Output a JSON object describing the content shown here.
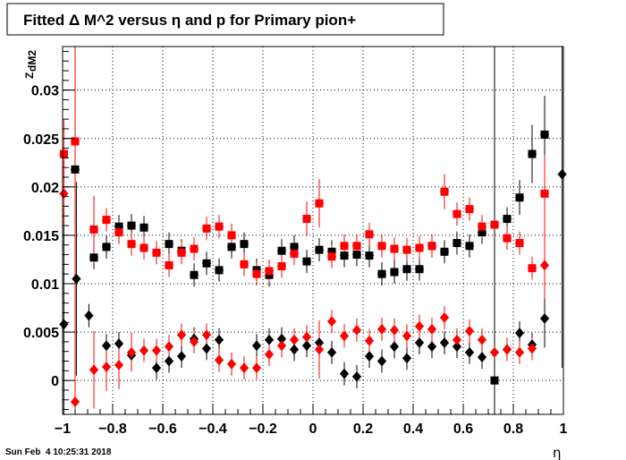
{
  "chart_data": {
    "type": "scatter",
    "title": "Fitted Δ M^2 versus η and p for Primary pion+",
    "xlabel": "η",
    "ylabel": "Z",
    "ylabel_sub": "dM2",
    "timestamp": "Sun Feb  4 10:25:31 2018",
    "xlim": [
      -1,
      1
    ],
    "ylim": [
      -0.0035,
      0.0345
    ],
    "grid": true,
    "x_ticks": [
      {
        "v": -1,
        "label": "−1"
      },
      {
        "v": -0.8,
        "label": "−0.8"
      },
      {
        "v": -0.6,
        "label": "−0.6"
      },
      {
        "v": -0.4,
        "label": "−0.4"
      },
      {
        "v": -0.2,
        "label": "−0.2"
      },
      {
        "v": 0,
        "label": "0"
      },
      {
        "v": 0.2,
        "label": "0.2"
      },
      {
        "v": 0.4,
        "label": "0.4"
      },
      {
        "v": 0.6,
        "label": "0.6"
      },
      {
        "v": 0.8,
        "label": "0.8"
      },
      {
        "v": 1,
        "label": "1"
      }
    ],
    "y_ticks": [
      {
        "v": 0,
        "label": "0"
      },
      {
        "v": 0.005,
        "label": "0.005"
      },
      {
        "v": 0.01,
        "label": "0.01"
      },
      {
        "v": 0.015,
        "label": "0.015"
      },
      {
        "v": 0.02,
        "label": "0.02"
      },
      {
        "v": 0.025,
        "label": "0.025"
      },
      {
        "v": 0.03,
        "label": "0.03"
      }
    ],
    "series": [
      {
        "marker": "square",
        "color": "#000000",
        "points": [
          [
            -0.95,
            0.0218,
            0.005
          ],
          [
            -0.875,
            0.0127,
            0.0012
          ],
          [
            -0.825,
            0.0138,
            0.0012
          ],
          [
            -0.775,
            0.0159,
            0.0012
          ],
          [
            -0.725,
            0.016,
            0.0012
          ],
          [
            -0.675,
            0.0158,
            0.0012
          ],
          [
            -0.575,
            0.0141,
            0.0012
          ],
          [
            -0.525,
            0.0134,
            0.0012
          ],
          [
            -0.475,
            0.0109,
            0.0012
          ],
          [
            -0.425,
            0.0121,
            0.0012
          ],
          [
            -0.375,
            0.0114,
            0.0012
          ],
          [
            -0.325,
            0.0138,
            0.0012
          ],
          [
            -0.275,
            0.0141,
            0.0012
          ],
          [
            -0.225,
            0.0114,
            0.0012
          ],
          [
            -0.175,
            0.0109,
            0.0012
          ],
          [
            -0.125,
            0.0134,
            0.0012
          ],
          [
            -0.075,
            0.0138,
            0.0012
          ],
          [
            -0.025,
            0.0123,
            0.0012
          ],
          [
            0.025,
            0.0135,
            0.0012
          ],
          [
            0.075,
            0.0133,
            0.0012
          ],
          [
            0.125,
            0.0129,
            0.0012
          ],
          [
            0.175,
            0.013,
            0.0012
          ],
          [
            0.225,
            0.0129,
            0.0012
          ],
          [
            0.275,
            0.011,
            0.0012
          ],
          [
            0.325,
            0.0112,
            0.0012
          ],
          [
            0.375,
            0.0115,
            0.0012
          ],
          [
            0.425,
            0.0115,
            0.0012
          ],
          [
            0.475,
            0.0139,
            0.0012
          ],
          [
            0.525,
            0.0133,
            0.0012
          ],
          [
            0.575,
            0.0142,
            0.0012
          ],
          [
            0.625,
            0.0139,
            0.0012
          ],
          [
            0.675,
            0.0153,
            0.0012
          ],
          [
            0.775,
            0.0167,
            0.0012
          ],
          [
            0.825,
            0.0189,
            0.0018
          ],
          [
            0.875,
            0.0234,
            0.003
          ],
          [
            0.925,
            0.0254,
            0.004
          ]
        ]
      },
      {
        "marker": "diamond",
        "color": "#000000",
        "points": [
          [
            -0.995,
            0.0058,
            0.012
          ],
          [
            -0.945,
            0.0105,
            0.01
          ],
          [
            -0.895,
            0.0067,
            0.0012
          ],
          [
            -0.825,
            0.0036,
            0.0012
          ],
          [
            -0.775,
            0.0038,
            0.0012
          ],
          [
            -0.725,
            0.0026,
            0.0012
          ],
          [
            -0.625,
            0.0013,
            0.0012
          ],
          [
            -0.575,
            0.002,
            0.0012
          ],
          [
            -0.525,
            0.0025,
            0.0012
          ],
          [
            -0.475,
            0.0043,
            0.0012
          ],
          [
            -0.425,
            0.0033,
            0.0012
          ],
          [
            -0.375,
            0.0042,
            0.0012
          ],
          [
            -0.225,
            0.0036,
            0.0012
          ],
          [
            -0.175,
            0.0042,
            0.0012
          ],
          [
            -0.125,
            0.0043,
            0.0012
          ],
          [
            -0.075,
            0.0032,
            0.0012
          ],
          [
            -0.025,
            0.0036,
            0.0012
          ],
          [
            0.025,
            0.0039,
            0.0012
          ],
          [
            0.075,
            0.0029,
            0.0012
          ],
          [
            0.125,
            0.0007,
            0.0012
          ],
          [
            0.175,
            0.0004,
            0.0012
          ],
          [
            0.225,
            0.0025,
            0.0012
          ],
          [
            0.275,
            0.002,
            0.0012
          ],
          [
            0.325,
            0.0035,
            0.0012
          ],
          [
            0.375,
            0.0023,
            0.0012
          ],
          [
            0.425,
            0.0039,
            0.0012
          ],
          [
            0.475,
            0.0035,
            0.0012
          ],
          [
            0.525,
            0.0039,
            0.0012
          ],
          [
            0.575,
            0.0035,
            0.0012
          ],
          [
            0.625,
            0.0029,
            0.0012
          ],
          [
            0.675,
            0.0024,
            0.0012
          ],
          [
            0.775,
            0.0032,
            0.0012
          ],
          [
            0.825,
            0.0049,
            0.0012
          ],
          [
            0.875,
            0.0037,
            0.0012
          ],
          [
            0.925,
            0.0064,
            0.003
          ],
          [
            0.995,
            0.0213,
            0.02
          ]
        ]
      },
      {
        "marker": "square",
        "color": "#ff0000",
        "points": [
          [
            -0.995,
            0.0234,
            0.0035
          ],
          [
            -0.95,
            0.0247,
            0.014
          ],
          [
            -0.875,
            0.0156,
            0.0035
          ],
          [
            -0.825,
            0.0166,
            0.0012
          ],
          [
            -0.775,
            0.0153,
            0.0012
          ],
          [
            -0.725,
            0.0141,
            0.0012
          ],
          [
            -0.675,
            0.0137,
            0.0012
          ],
          [
            -0.625,
            0.0132,
            0.0012
          ],
          [
            -0.575,
            0.0119,
            0.0012
          ],
          [
            -0.525,
            0.0132,
            0.0012
          ],
          [
            -0.475,
            0.0136,
            0.0012
          ],
          [
            -0.425,
            0.0157,
            0.0012
          ],
          [
            -0.375,
            0.0159,
            0.0012
          ],
          [
            -0.325,
            0.015,
            0.0012
          ],
          [
            -0.275,
            0.012,
            0.0012
          ],
          [
            -0.225,
            0.011,
            0.0012
          ],
          [
            -0.175,
            0.0113,
            0.0012
          ],
          [
            -0.125,
            0.0118,
            0.0012
          ],
          [
            -0.075,
            0.0131,
            0.0012
          ],
          [
            -0.025,
            0.0167,
            0.0018
          ],
          [
            0.025,
            0.0183,
            0.0025
          ],
          [
            0.075,
            0.0128,
            0.0012
          ],
          [
            0.125,
            0.0139,
            0.0012
          ],
          [
            0.175,
            0.0139,
            0.0012
          ],
          [
            0.225,
            0.0151,
            0.0012
          ],
          [
            0.275,
            0.0139,
            0.0012
          ],
          [
            0.325,
            0.0136,
            0.0012
          ],
          [
            0.375,
            0.0135,
            0.0012
          ],
          [
            0.425,
            0.0137,
            0.0012
          ],
          [
            0.475,
            0.0139,
            0.0012
          ],
          [
            0.525,
            0.0195,
            0.0018
          ],
          [
            0.575,
            0.0172,
            0.0012
          ],
          [
            0.625,
            0.0177,
            0.0012
          ],
          [
            0.675,
            0.0159,
            0.0012
          ],
          [
            0.725,
            0.0161,
            0.0012
          ],
          [
            0.775,
            0.0147,
            0.0012
          ],
          [
            0.825,
            0.0142,
            0.0012
          ],
          [
            0.875,
            0.0116,
            0.0012
          ],
          [
            0.925,
            0.0193,
            0.004
          ]
        ]
      },
      {
        "marker": "diamond",
        "color": "#ff0000",
        "points": [
          [
            -0.995,
            0.0193,
            0.0035
          ],
          [
            -0.95,
            -0.0022,
            0.013
          ],
          [
            -0.875,
            0.0011,
            0.004
          ],
          [
            -0.825,
            0.0014,
            0.0025
          ],
          [
            -0.775,
            0.0016,
            0.0025
          ],
          [
            -0.725,
            0.0029,
            0.002
          ],
          [
            -0.675,
            0.0031,
            0.0012
          ],
          [
            -0.625,
            0.0031,
            0.0012
          ],
          [
            -0.575,
            0.0035,
            0.0012
          ],
          [
            -0.525,
            0.0047,
            0.0012
          ],
          [
            -0.475,
            0.004,
            0.0012
          ],
          [
            -0.425,
            0.0047,
            0.0012
          ],
          [
            -0.375,
            0.0021,
            0.0012
          ],
          [
            -0.325,
            0.0017,
            0.0012
          ],
          [
            -0.275,
            0.0013,
            0.0012
          ],
          [
            -0.225,
            0.0013,
            0.0012
          ],
          [
            -0.175,
            0.0027,
            0.0012
          ],
          [
            -0.125,
            0.0036,
            0.0012
          ],
          [
            -0.075,
            0.0042,
            0.0012
          ],
          [
            -0.025,
            0.0045,
            0.0012
          ],
          [
            0.025,
            0.0032,
            0.003
          ],
          [
            0.075,
            0.0061,
            0.0012
          ],
          [
            0.125,
            0.0046,
            0.0012
          ],
          [
            0.175,
            0.0052,
            0.0012
          ],
          [
            0.225,
            0.0041,
            0.0012
          ],
          [
            0.275,
            0.0053,
            0.0012
          ],
          [
            0.325,
            0.0052,
            0.0012
          ],
          [
            0.375,
            0.0046,
            0.0012
          ],
          [
            0.425,
            0.0056,
            0.0012
          ],
          [
            0.475,
            0.0053,
            0.0012
          ],
          [
            0.525,
            0.0065,
            0.0012
          ],
          [
            0.575,
            0.0042,
            0.0012
          ],
          [
            0.625,
            0.0051,
            0.0012
          ],
          [
            0.675,
            0.0042,
            0.0012
          ],
          [
            0.725,
            0.0029,
            0.0012
          ],
          [
            0.775,
            0.0032,
            0.0012
          ],
          [
            0.825,
            0.0029,
            0.0012
          ],
          [
            0.875,
            0.0033,
            0.0012
          ],
          [
            0.925,
            0.0119,
            0.0035
          ]
        ]
      }
    ],
    "vertical_errors": [
      {
        "x": 0.725,
        "y": 0.0,
        "y_low": -0.0035,
        "y_high": 0.0345,
        "marker": "square",
        "color": "#000000"
      }
    ]
  }
}
